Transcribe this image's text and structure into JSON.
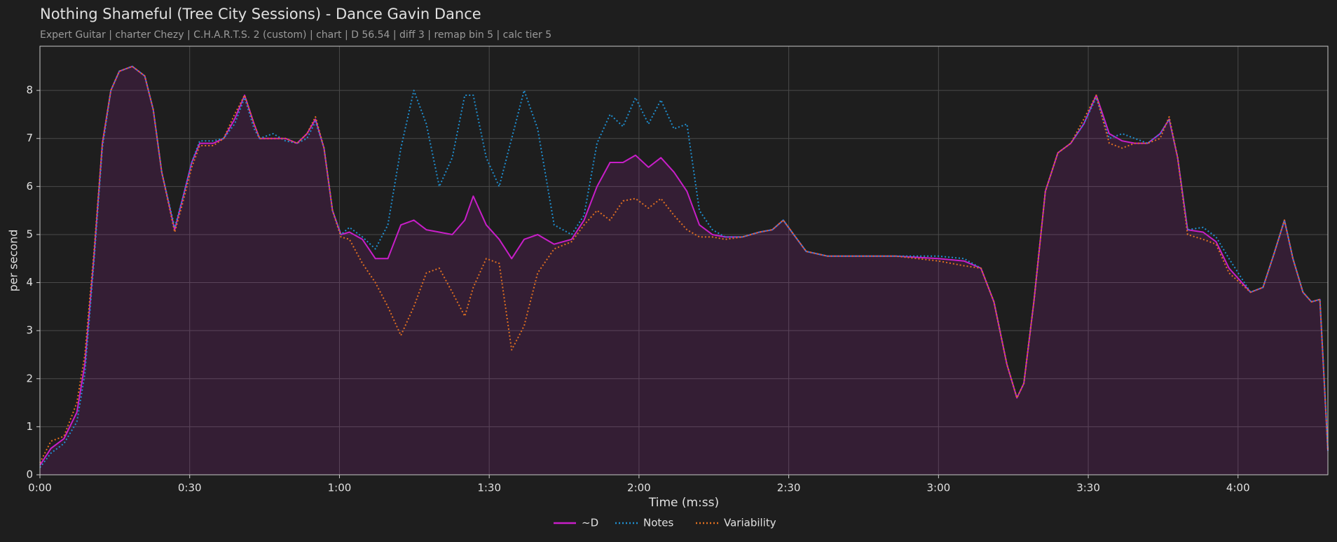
{
  "chart_data": {
    "type": "line",
    "title": "Nothing Shameful (Tree City Sessions) - Dance Gavin Dance",
    "subtitle": "Expert Guitar  |  charter Chezy  |  C.H.A.R.T.S. 2 (custom)  |  chart  |  D 56.54  |  diff 3  |  remap bin 5  |  calc tier 5",
    "x_label": "Time (m:ss)",
    "y_label": "per second",
    "x": [
      0,
      2.2,
      4.8,
      7.4,
      9,
      10.8,
      12.5,
      14.2,
      15.9,
      18.5,
      21,
      22.7,
      24.4,
      27,
      28.7,
      30.4,
      32,
      34.7,
      36.8,
      39,
      41,
      42.9,
      44,
      46.7,
      49.2,
      51.5,
      53.5,
      55.2,
      56.9,
      58.6,
      60.3,
      62,
      64.6,
      67.2,
      69.7,
      72.3,
      74.9,
      77.4,
      80,
      82.6,
      85.1,
      86.8,
      89.4,
      92,
      94.5,
      97,
      99.7,
      103,
      106.5,
      109,
      111.6,
      114.2,
      116.8,
      119.3,
      121.9,
      124.4,
      127,
      129.6,
      132.1,
      134.7,
      137.3,
      140.7,
      144.1,
      146.7,
      148.9,
      151,
      153.5,
      157.8,
      162.9,
      171.5,
      180,
      185.1,
      188.5,
      191.1,
      193.7,
      195.7,
      197.1,
      199.1,
      201.4,
      203.9,
      206.5,
      209.1,
      211.6,
      214.2,
      216.8,
      219.3,
      221.9,
      224.4,
      226.2,
      227.9,
      229.9,
      233,
      235.6,
      238.2,
      242.5,
      245,
      247.2,
      249.3,
      251,
      253,
      254.7,
      256.4,
      258
    ],
    "series": [
      {
        "name": "~D",
        "color": "#c81ec8",
        "style": "solid",
        "area": true,
        "values": [
          0.2,
          0.55,
          0.75,
          1.3,
          2.3,
          4.5,
          6.9,
          8.0,
          8.4,
          8.5,
          8.3,
          7.6,
          6.3,
          5.1,
          5.8,
          6.5,
          6.9,
          6.9,
          7.0,
          7.4,
          7.9,
          7.3,
          7.0,
          7.0,
          7.0,
          6.9,
          7.1,
          7.4,
          6.8,
          5.5,
          5.0,
          5.05,
          4.9,
          4.5,
          4.5,
          5.2,
          5.3,
          5.1,
          5.05,
          5.0,
          5.3,
          5.8,
          5.2,
          4.9,
          4.5,
          4.9,
          5.0,
          4.8,
          4.9,
          5.3,
          6.0,
          6.5,
          6.5,
          6.65,
          6.4,
          6.6,
          6.3,
          5.9,
          5.2,
          5.0,
          4.95,
          4.95,
          5.05,
          5.1,
          5.3,
          5.0,
          4.65,
          4.55,
          4.55,
          4.55,
          4.5,
          4.45,
          4.3,
          3.6,
          2.3,
          1.6,
          1.9,
          3.6,
          5.9,
          6.7,
          6.9,
          7.3,
          7.9,
          7.1,
          6.95,
          6.9,
          6.9,
          7.1,
          7.4,
          6.6,
          5.1,
          5.05,
          4.85,
          4.3,
          3.8,
          3.9,
          4.6,
          5.3,
          4.5,
          3.8,
          3.6,
          3.65,
          0.5
        ]
      },
      {
        "name": "Notes",
        "color": "#1f8fd0",
        "style": "dotted",
        "values": [
          0.15,
          0.45,
          0.65,
          1.1,
          2.1,
          4.4,
          6.8,
          8.0,
          8.4,
          8.5,
          8.3,
          7.6,
          6.3,
          5.15,
          5.8,
          6.5,
          6.95,
          6.95,
          7.0,
          7.3,
          7.85,
          7.2,
          7.0,
          7.1,
          6.95,
          6.9,
          7.0,
          7.35,
          6.8,
          5.5,
          5.0,
          5.15,
          4.95,
          4.7,
          5.2,
          6.8,
          8.0,
          7.3,
          6.0,
          6.6,
          7.9,
          7.9,
          6.6,
          6.0,
          7.0,
          8.0,
          7.2,
          5.2,
          5.0,
          5.4,
          6.9,
          7.5,
          7.25,
          7.85,
          7.3,
          7.8,
          7.2,
          7.3,
          5.5,
          5.1,
          4.95,
          4.95,
          5.05,
          5.1,
          5.3,
          5.0,
          4.65,
          4.55,
          4.55,
          4.55,
          4.55,
          4.5,
          4.3,
          3.6,
          2.3,
          1.6,
          1.9,
          3.6,
          5.9,
          6.7,
          6.9,
          7.3,
          7.85,
          7.0,
          7.1,
          7.0,
          6.9,
          7.1,
          7.4,
          6.6,
          5.1,
          5.15,
          4.95,
          4.5,
          3.8,
          3.9,
          4.6,
          5.3,
          4.5,
          3.8,
          3.6,
          3.65,
          0.5
        ]
      },
      {
        "name": "Variability",
        "color": "#e07020",
        "style": "dotted",
        "values": [
          0.25,
          0.7,
          0.8,
          1.5,
          2.5,
          4.6,
          6.9,
          8.0,
          8.4,
          8.5,
          8.3,
          7.6,
          6.3,
          5.05,
          5.7,
          6.4,
          6.85,
          6.85,
          7.0,
          7.5,
          7.9,
          7.3,
          7.0,
          7.0,
          7.0,
          6.9,
          7.1,
          7.45,
          6.8,
          5.5,
          4.95,
          4.9,
          4.4,
          4.0,
          3.5,
          2.9,
          3.5,
          4.2,
          4.3,
          3.8,
          3.3,
          3.9,
          4.5,
          4.4,
          2.6,
          3.1,
          4.2,
          4.7,
          4.85,
          5.2,
          5.5,
          5.3,
          5.7,
          5.75,
          5.55,
          5.75,
          5.4,
          5.1,
          4.95,
          4.95,
          4.9,
          4.95,
          5.05,
          5.1,
          5.3,
          5.0,
          4.65,
          4.55,
          4.55,
          4.55,
          4.45,
          4.35,
          4.3,
          3.6,
          2.3,
          1.6,
          1.9,
          3.6,
          5.9,
          6.7,
          6.9,
          7.4,
          7.9,
          6.9,
          6.8,
          6.9,
          6.9,
          7.0,
          7.45,
          6.6,
          5.0,
          4.9,
          4.8,
          4.2,
          3.8,
          3.9,
          4.6,
          5.3,
          4.5,
          3.8,
          3.6,
          3.65,
          0.5
        ]
      }
    ],
    "xlim": [
      0,
      258
    ],
    "ylim": [
      0,
      8.92
    ],
    "xticks": [
      {
        "value": 0,
        "label": "0:00"
      },
      {
        "value": 30,
        "label": "0:30"
      },
      {
        "value": 60,
        "label": "1:00"
      },
      {
        "value": 90,
        "label": "1:30"
      },
      {
        "value": 120,
        "label": "2:00"
      },
      {
        "value": 150,
        "label": "2:30"
      },
      {
        "value": 180,
        "label": "3:00"
      },
      {
        "value": 210,
        "label": "3:30"
      },
      {
        "value": 240,
        "label": "4:00"
      }
    ],
    "yticks": [
      0,
      1,
      2,
      3,
      4,
      5,
      6,
      7,
      8
    ],
    "grid": true,
    "legend": "bottom"
  }
}
